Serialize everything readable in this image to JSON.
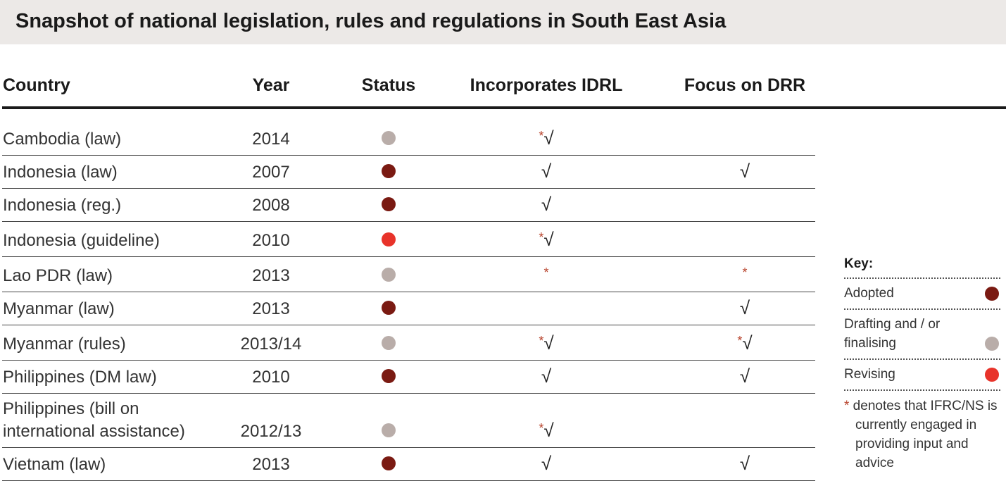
{
  "title": "Snapshot of national legislation, rules and regulations in South East Asia",
  "table": {
    "headers": [
      "Country",
      "Year",
      "Status",
      "Incorporates IDRL",
      "Focus on DRR"
    ],
    "rows": [
      {
        "country": "Cambodia (law)",
        "year": "2014",
        "status": "Drafting and / or finalising",
        "idrl": "*√",
        "drr": ""
      },
      {
        "country": "Indonesia (law)",
        "year": "2007",
        "status": "Adopted",
        "idrl": "√",
        "drr": "√"
      },
      {
        "country": "Indonesia (reg.)",
        "year": "2008",
        "status": "Adopted",
        "idrl": "√",
        "drr": ""
      },
      {
        "country": "Indonesia (guideline)",
        "year": "2010",
        "status": "Revising",
        "idrl": "*√",
        "drr": ""
      },
      {
        "country": "Lao PDR (law)",
        "year": "2013",
        "status": "Drafting and / or finalising",
        "idrl": "*",
        "drr": "*"
      },
      {
        "country": "Myanmar (law)",
        "year": "2013",
        "status": "Adopted",
        "idrl": "",
        "drr": "√"
      },
      {
        "country": "Myanmar (rules)",
        "year": "2013/14",
        "status": "Drafting and / or finalising",
        "idrl": "*√",
        "drr": "*√"
      },
      {
        "country": "Philippines (DM law)",
        "year": "2010",
        "status": "Adopted",
        "idrl": "√",
        "drr": "√"
      },
      {
        "country": "Philippines (bill on international assistance)",
        "year": "2012/13",
        "status": "Drafting and / or finalising",
        "idrl": "*√",
        "drr": ""
      },
      {
        "country": "Vietnam (law)",
        "year": "2013",
        "status": "Adopted",
        "idrl": "√",
        "drr": "√"
      }
    ]
  },
  "key": {
    "title": "Key:",
    "items": [
      {
        "label": "Adopted",
        "color": "#7a1a12"
      },
      {
        "label": "Drafting and / or finalising",
        "color": "#b9ada9"
      },
      {
        "label": "Revising",
        "color": "#e8332a"
      }
    ],
    "note": "* denotes that IFRC/NS is currently engaged in providing input and advice"
  }
}
